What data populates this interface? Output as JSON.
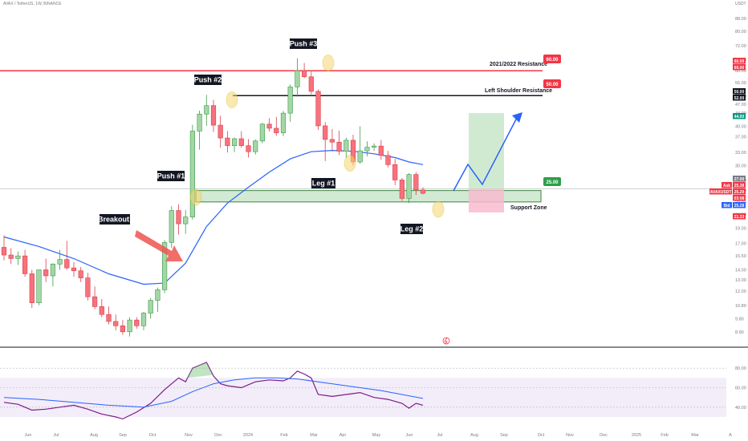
{
  "header": {
    "symbol_line": "AVAX / TetherUS, 1W, BINANCE",
    "currency": "USDT"
  },
  "chart_data": {
    "type": "candlestick",
    "price_scale": "log",
    "ylim": [
      8.0,
      96.0
    ],
    "y_ticks": [
      "88.00",
      "80.00",
      "72.00",
      "65.00",
      "60.00",
      "55.00",
      "50.00",
      "47.00",
      "44.00",
      "40.00",
      "37.00",
      "33.00",
      "30.00",
      "27.00",
      "25.00",
      "23.00",
      "21.00",
      "19.00",
      "17.00",
      "15.50",
      "14.00",
      "13.00",
      "12.00",
      "10.80",
      "9.80",
      "8.90"
    ],
    "x_ticks": [
      "Jun",
      "Jul",
      "Aug",
      "Sep",
      "Oct",
      "Nov",
      "Dec",
      "2024",
      "Feb",
      "Mar",
      "Apr",
      "May",
      "Jun",
      "Jul",
      "Aug",
      "Sep",
      "Oct",
      "Nov",
      "Dec",
      "2025",
      "Feb",
      "Mar",
      "A"
    ],
    "candles": [
      [
        16.5,
        18.0,
        15.0,
        15.6
      ],
      [
        15.6,
        16.4,
        14.6,
        15.2
      ],
      [
        15.2,
        16.0,
        14.5,
        15.5
      ],
      [
        15.5,
        16.2,
        13.3,
        13.6
      ],
      [
        13.6,
        14.0,
        10.6,
        11.0
      ],
      [
        11.0,
        14.0,
        10.8,
        14.0
      ],
      [
        14.0,
        15.2,
        12.8,
        13.4
      ],
      [
        13.4,
        14.7,
        12.4,
        14.6
      ],
      [
        14.6,
        16.2,
        14.0,
        15.1
      ],
      [
        15.1,
        17.3,
        14.0,
        14.2
      ],
      [
        14.2,
        14.8,
        13.3,
        13.9
      ],
      [
        13.9,
        14.3,
        12.8,
        13.2
      ],
      [
        13.2,
        13.7,
        11.2,
        11.5
      ],
      [
        11.5,
        12.4,
        10.5,
        10.7
      ],
      [
        10.7,
        11.3,
        9.9,
        10.1
      ],
      [
        10.1,
        10.7,
        9.4,
        9.6
      ],
      [
        9.6,
        10.1,
        9.0,
        9.3
      ],
      [
        9.3,
        9.7,
        8.7,
        8.9
      ],
      [
        8.9,
        9.9,
        8.6,
        9.7
      ],
      [
        9.7,
        9.9,
        9.1,
        9.3
      ],
      [
        9.3,
        10.3,
        9.0,
        10.2
      ],
      [
        10.2,
        11.4,
        9.8,
        11.2
      ],
      [
        11.2,
        12.3,
        10.3,
        12.1
      ],
      [
        12.1,
        17.4,
        11.8,
        17.1
      ],
      [
        17.1,
        22.3,
        16.4,
        21.6
      ],
      [
        21.6,
        22.6,
        18.1,
        19.6
      ],
      [
        19.6,
        21.7,
        18.2,
        20.6
      ],
      [
        20.6,
        40.4,
        20.2,
        38.6
      ],
      [
        38.6,
        44.8,
        33.7,
        43.7
      ],
      [
        43.7,
        50.3,
        40.1,
        46.5
      ],
      [
        46.5,
        48.5,
        38.3,
        40.3
      ],
      [
        40.3,
        43.2,
        34.2,
        36.7
      ],
      [
        36.7,
        38.6,
        33.0,
        34.7
      ],
      [
        34.7,
        36.8,
        33.1,
        36.5
      ],
      [
        36.5,
        38.6,
        34.2,
        34.7
      ],
      [
        34.7,
        36.4,
        31.8,
        33.2
      ],
      [
        33.2,
        36.3,
        32.5,
        35.9
      ],
      [
        35.9,
        41.0,
        35.3,
        40.6
      ],
      [
        40.6,
        42.4,
        38.5,
        39.4
      ],
      [
        39.4,
        42.8,
        37.3,
        38.1
      ],
      [
        38.1,
        44.7,
        37.2,
        44.0
      ],
      [
        44.0,
        54.3,
        41.3,
        53.3
      ],
      [
        53.3,
        65.7,
        49.6,
        60.0
      ],
      [
        60.0,
        63.5,
        56.8,
        57.4
      ],
      [
        57.4,
        60.1,
        50.5,
        51.6
      ],
      [
        51.6,
        52.3,
        38.9,
        40.1
      ],
      [
        40.1,
        41.2,
        31.0,
        36.3
      ],
      [
        36.3,
        39.2,
        33.3,
        35.6
      ],
      [
        35.6,
        38.7,
        32.4,
        33.3
      ],
      [
        33.3,
        36.8,
        31.7,
        36.1
      ],
      [
        36.1,
        37.6,
        30.0,
        30.8
      ],
      [
        30.8,
        40.0,
        30.4,
        33.4
      ],
      [
        33.4,
        35.8,
        32.1,
        34.3
      ],
      [
        34.3,
        35.3,
        33.4,
        34.6
      ],
      [
        34.6,
        36.2,
        31.3,
        32.3
      ],
      [
        32.3,
        33.4,
        29.6,
        30.2
      ],
      [
        30.2,
        31.5,
        26.0,
        27.0
      ],
      [
        27.0,
        27.4,
        23.2,
        23.6
      ],
      [
        23.6,
        28.4,
        22.8,
        28.1
      ],
      [
        28.1,
        28.6,
        24.2,
        25.1
      ],
      [
        25.1,
        25.6,
        24.3,
        24.5
      ]
    ],
    "moving_average": [
      [
        0,
        17.8
      ],
      [
        5,
        16.6
      ],
      [
        10,
        15.2
      ],
      [
        15,
        13.6
      ],
      [
        20,
        12.6
      ],
      [
        23,
        12.7
      ],
      [
        26,
        14.7
      ],
      [
        29,
        19.2
      ],
      [
        32,
        22.8
      ],
      [
        35,
        25.6
      ],
      [
        38,
        28.6
      ],
      [
        41,
        31.5
      ],
      [
        44,
        33.2
      ],
      [
        47,
        33.5
      ],
      [
        50,
        33.3
      ],
      [
        53,
        32.7
      ],
      [
        56,
        31.8
      ],
      [
        58,
        30.8
      ],
      [
        60,
        30.2
      ]
    ],
    "rsi": {
      "ylim": [
        0,
        100
      ],
      "ticks": [
        "80.00",
        "60.00",
        "40.00"
      ],
      "values": [
        [
          0,
          45
        ],
        [
          2,
          43
        ],
        [
          4,
          37
        ],
        [
          6,
          38
        ],
        [
          8,
          40
        ],
        [
          10,
          42
        ],
        [
          12,
          38
        ],
        [
          14,
          33
        ],
        [
          16,
          30
        ],
        [
          17,
          28
        ],
        [
          19,
          35
        ],
        [
          21,
          44
        ],
        [
          23,
          58
        ],
        [
          25,
          70
        ],
        [
          26,
          66
        ],
        [
          27,
          80
        ],
        [
          28,
          83
        ],
        [
          29,
          86
        ],
        [
          30,
          72
        ],
        [
          31,
          64
        ],
        [
          32,
          62
        ],
        [
          34,
          60
        ],
        [
          36,
          66
        ],
        [
          38,
          68
        ],
        [
          40,
          67
        ],
        [
          41,
          70
        ],
        [
          42,
          77
        ],
        [
          43,
          74
        ],
        [
          44,
          70
        ],
        [
          45,
          53
        ],
        [
          47,
          51
        ],
        [
          49,
          53
        ],
        [
          51,
          55
        ],
        [
          53,
          50
        ],
        [
          55,
          48
        ],
        [
          57,
          44
        ],
        [
          58,
          39
        ],
        [
          59,
          44
        ],
        [
          60,
          42
        ]
      ],
      "signal": [
        [
          0,
          50
        ],
        [
          5,
          48
        ],
        [
          10,
          45
        ],
        [
          15,
          42
        ],
        [
          20,
          40
        ],
        [
          24,
          46
        ],
        [
          27,
          56
        ],
        [
          30,
          64
        ],
        [
          33,
          68
        ],
        [
          36,
          70
        ],
        [
          39,
          70
        ],
        [
          42,
          69
        ],
        [
          45,
          66
        ],
        [
          48,
          63
        ],
        [
          51,
          60
        ],
        [
          54,
          57
        ],
        [
          57,
          53
        ],
        [
          60,
          49
        ]
      ]
    },
    "annotations": {
      "labels": [
        "Push #1",
        "Push #2",
        "Push #3",
        "Breakout!",
        "Leg #1",
        "Leg #2",
        "Support Zone",
        "Left Shoulder Resistance",
        "2021/2022 Resistance"
      ],
      "level_tags": [
        "60.00",
        "50.00",
        "25.00"
      ]
    },
    "price_chips": [
      {
        "text": "60.00",
        "color": "#f23645"
      },
      {
        "text": "60.00",
        "color": "#f23645"
      },
      {
        "text": "50.00",
        "color": "#131722"
      },
      {
        "text": "52.00",
        "color": "#131722"
      },
      {
        "text": "44.00",
        "color": "#089981"
      },
      {
        "text": "27.00",
        "color": "#787b86"
      },
      {
        "text": "Ask",
        "color": "#f23645"
      },
      {
        "text": "25.38",
        "color": "#f23645"
      },
      {
        "text": "AVAXUSDT",
        "color": "#f23645"
      },
      {
        "text": "25.29",
        "color": "#f23645"
      },
      {
        "text": "03:08",
        "color": "#f23645"
      },
      {
        "text": "Bid",
        "color": "#2962ff"
      },
      {
        "text": "25.28",
        "color": "#2962ff"
      },
      {
        "text": "21.33",
        "color": "#f23645"
      }
    ],
    "colors": {
      "up": "#a5d6a7",
      "up_border": "#3d9c48",
      "down": "#f7727d",
      "down_border": "#d8404b",
      "ma": "#2962ff",
      "rsi": "#7e1a8c",
      "rsi_signal": "#2962ff",
      "support_fill": "#c8e6c9",
      "support_border": "#2e7d32",
      "resistance_red": "#f23645",
      "resistance_black": "#131722",
      "forecast": "#2962ff",
      "marker": "#f7d774"
    }
  }
}
